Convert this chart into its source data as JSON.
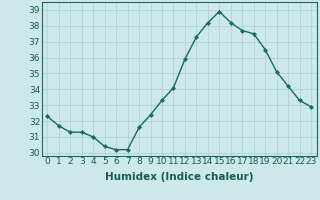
{
  "x": [
    0,
    1,
    2,
    3,
    4,
    5,
    6,
    7,
    8,
    9,
    10,
    11,
    12,
    13,
    14,
    15,
    16,
    17,
    18,
    19,
    20,
    21,
    22,
    23
  ],
  "y": [
    32.3,
    31.7,
    31.3,
    31.3,
    31.0,
    30.4,
    30.2,
    30.2,
    31.6,
    32.4,
    33.3,
    34.1,
    35.9,
    37.3,
    38.2,
    38.9,
    38.2,
    37.7,
    37.5,
    36.5,
    35.1,
    34.2,
    33.3,
    32.9
  ],
  "line_color": "#1a6b5a",
  "marker": "D",
  "marker_size": 2.0,
  "bg_color": "#cce8e8",
  "grid_color": "#aacfcf",
  "xlabel": "Humidex (Indice chaleur)",
  "xlim": [
    -0.5,
    23.5
  ],
  "ylim": [
    29.8,
    39.5
  ],
  "yticks": [
    30,
    31,
    32,
    33,
    34,
    35,
    36,
    37,
    38,
    39
  ],
  "xticks": [
    0,
    1,
    2,
    3,
    4,
    5,
    6,
    7,
    8,
    9,
    10,
    11,
    12,
    13,
    14,
    15,
    16,
    17,
    18,
    19,
    20,
    21,
    22,
    23
  ],
  "tick_label_size": 6.5,
  "xlabel_size": 7.5,
  "line_width": 1.0
}
